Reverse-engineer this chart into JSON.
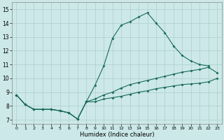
{
  "xlabel": "Humidex (Indice chaleur)",
  "xlim": [
    -0.5,
    23.5
  ],
  "ylim": [
    6.7,
    15.5
  ],
  "xticks": [
    0,
    1,
    2,
    3,
    4,
    5,
    6,
    7,
    8,
    9,
    10,
    11,
    12,
    13,
    14,
    15,
    16,
    17,
    18,
    19,
    20,
    21,
    22,
    23
  ],
  "yticks": [
    7,
    8,
    9,
    10,
    11,
    12,
    13,
    14,
    15
  ],
  "bg_color": "#cce8e8",
  "line_color": "#1a6b5a",
  "grid_color": "#aecece",
  "line1_x": [
    0,
    1,
    2,
    3,
    4,
    5,
    6,
    7,
    8,
    9,
    10,
    11,
    12,
    13,
    14,
    15,
    16,
    17,
    18,
    19,
    20,
    21,
    22
  ],
  "line1_y": [
    8.8,
    8.1,
    7.75,
    7.75,
    7.75,
    7.65,
    7.5,
    7.05,
    8.3,
    9.5,
    10.9,
    12.9,
    13.85,
    14.1,
    14.45,
    14.75,
    14.0,
    13.3,
    12.35,
    11.65,
    11.25,
    11.0,
    10.9
  ],
  "line2_x": [
    0,
    1,
    2,
    3,
    4,
    5,
    6,
    7,
    8,
    9,
    10,
    11,
    12,
    13,
    14,
    15,
    16,
    17,
    18,
    19,
    20,
    21,
    22,
    23
  ],
  "line2_y": [
    8.8,
    8.1,
    7.75,
    7.75,
    7.75,
    7.65,
    7.5,
    7.05,
    8.3,
    8.5,
    8.8,
    9.0,
    9.3,
    9.55,
    9.7,
    9.85,
    10.0,
    10.15,
    10.3,
    10.45,
    10.55,
    10.65,
    10.8,
    10.4
  ],
  "line3_x": [
    0,
    1,
    2,
    3,
    4,
    5,
    6,
    7,
    8,
    9,
    10,
    11,
    12,
    13,
    14,
    15,
    16,
    17,
    18,
    19,
    20,
    21,
    22,
    23
  ],
  "line3_y": [
    8.8,
    8.1,
    7.75,
    7.75,
    7.75,
    7.65,
    7.5,
    7.05,
    8.3,
    8.3,
    8.5,
    8.6,
    8.7,
    8.85,
    9.0,
    9.1,
    9.25,
    9.35,
    9.45,
    9.55,
    9.6,
    9.65,
    9.75,
    10.0
  ]
}
